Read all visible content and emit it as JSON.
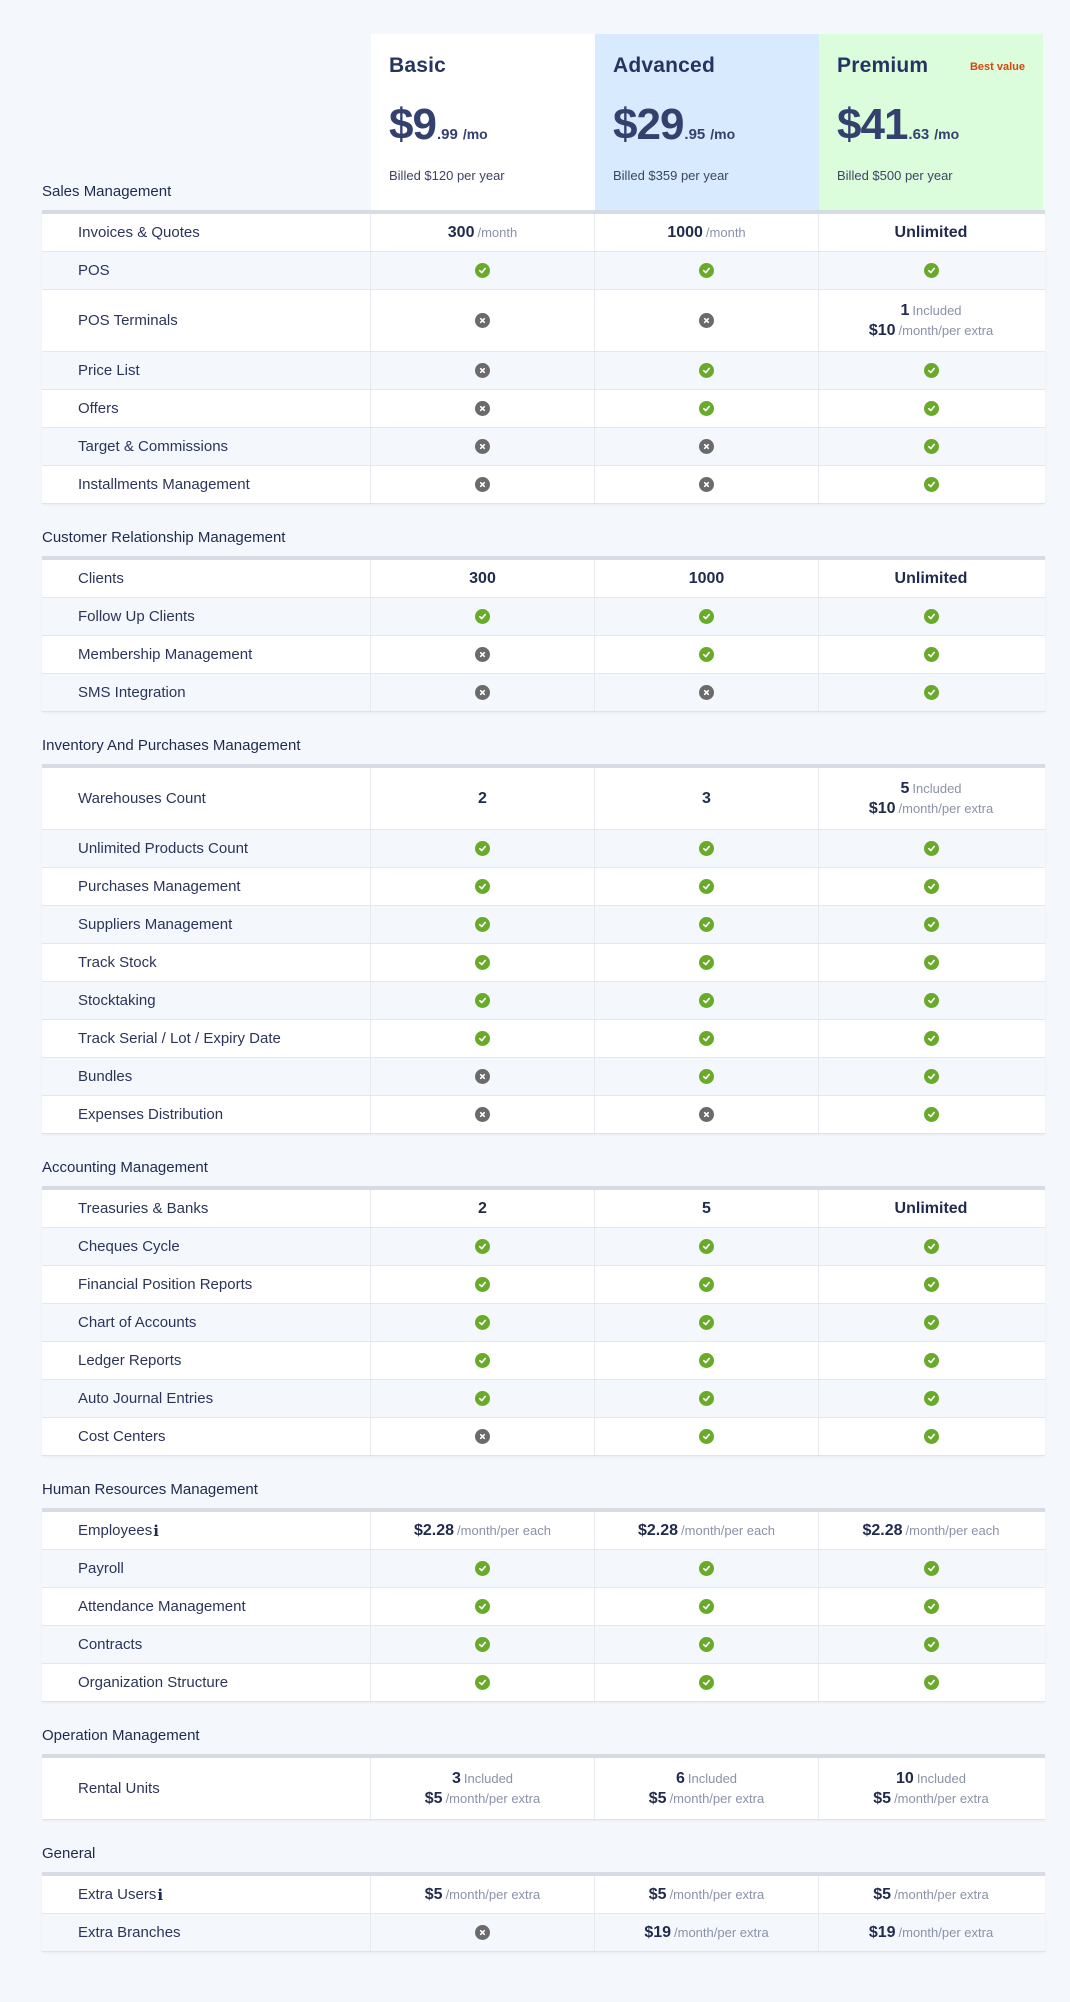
{
  "plans": [
    {
      "name": "Basic",
      "price_dollars": "$9",
      "price_cents": ".99",
      "price_period": "/mo",
      "billed": "Billed $120 per year",
      "badge": ""
    },
    {
      "name": "Advanced",
      "price_dollars": "$29",
      "price_cents": ".95",
      "price_period": "/mo",
      "billed": "Billed $359 per year",
      "badge": ""
    },
    {
      "name": "Premium",
      "price_dollars": "$41",
      "price_cents": ".63",
      "price_period": "/mo",
      "billed": "Billed $500 per year",
      "badge": "Best value"
    }
  ],
  "colors": {
    "background": "#f4f7fc",
    "basic_card": "#ffffff",
    "advanced_card": "#d8eafd",
    "premium_card": "#dcfddc",
    "best_value": "#d6450d",
    "check": "#6aaa2a",
    "cross": "#6b6b6b",
    "text_dark": "#1f2a4d"
  },
  "sections": [
    {
      "title": "Sales Management",
      "rows": [
        {
          "label": "Invoices & Quotes",
          "values": [
            {
              "main": "300",
              "sub": "/month"
            },
            {
              "main": "1000",
              "sub": "/month"
            },
            {
              "main": "Unlimited",
              "sub": ""
            }
          ]
        },
        {
          "label": "POS",
          "values": [
            "check",
            "check",
            "check"
          ]
        },
        {
          "label": "POS Terminals",
          "values": [
            "cross",
            "cross",
            {
              "main": "1",
              "sub": "Included",
              "main2": "$10",
              "sub2": "/month/per extra"
            }
          ]
        },
        {
          "label": "Price List",
          "values": [
            "cross",
            "check",
            "check"
          ]
        },
        {
          "label": "Offers",
          "values": [
            "cross",
            "check",
            "check"
          ]
        },
        {
          "label": "Target & Commissions",
          "values": [
            "cross",
            "cross",
            "check"
          ]
        },
        {
          "label": "Installments Management",
          "values": [
            "cross",
            "cross",
            "check"
          ]
        }
      ]
    },
    {
      "title": "Customer Relationship Management",
      "rows": [
        {
          "label": "Clients",
          "values": [
            {
              "main": "300",
              "sub": ""
            },
            {
              "main": "1000",
              "sub": ""
            },
            {
              "main": "Unlimited",
              "sub": ""
            }
          ]
        },
        {
          "label": "Follow Up Clients",
          "values": [
            "check",
            "check",
            "check"
          ]
        },
        {
          "label": "Membership Management",
          "values": [
            "cross",
            "check",
            "check"
          ]
        },
        {
          "label": "SMS Integration",
          "values": [
            "cross",
            "cross",
            "check"
          ]
        }
      ]
    },
    {
      "title": "Inventory And Purchases Management",
      "rows": [
        {
          "label": "Warehouses Count",
          "values": [
            {
              "main": "2",
              "sub": ""
            },
            {
              "main": "3",
              "sub": ""
            },
            {
              "main": "5",
              "sub": "Included",
              "main2": "$10",
              "sub2": "/month/per extra"
            }
          ]
        },
        {
          "label": "Unlimited Products Count",
          "values": [
            "check",
            "check",
            "check"
          ]
        },
        {
          "label": "Purchases Management",
          "values": [
            "check",
            "check",
            "check"
          ]
        },
        {
          "label": "Suppliers Management",
          "values": [
            "check",
            "check",
            "check"
          ]
        },
        {
          "label": "Track Stock",
          "values": [
            "check",
            "check",
            "check"
          ]
        },
        {
          "label": "Stocktaking",
          "values": [
            "check",
            "check",
            "check"
          ]
        },
        {
          "label": "Track Serial / Lot / Expiry Date",
          "values": [
            "check",
            "check",
            "check"
          ]
        },
        {
          "label": "Bundles",
          "values": [
            "cross",
            "check",
            "check"
          ]
        },
        {
          "label": "Expenses Distribution",
          "values": [
            "cross",
            "cross",
            "check"
          ]
        }
      ]
    },
    {
      "title": "Accounting Management",
      "rows": [
        {
          "label": "Treasuries & Banks",
          "values": [
            {
              "main": "2",
              "sub": ""
            },
            {
              "main": "5",
              "sub": ""
            },
            {
              "main": "Unlimited",
              "sub": ""
            }
          ]
        },
        {
          "label": "Cheques Cycle",
          "values": [
            "check",
            "check",
            "check"
          ]
        },
        {
          "label": "Financial Position Reports",
          "values": [
            "check",
            "check",
            "check"
          ]
        },
        {
          "label": "Chart of Accounts",
          "values": [
            "check",
            "check",
            "check"
          ]
        },
        {
          "label": "Ledger Reports",
          "values": [
            "check",
            "check",
            "check"
          ]
        },
        {
          "label": "Auto Journal Entries",
          "values": [
            "check",
            "check",
            "check"
          ]
        },
        {
          "label": "Cost Centers",
          "values": [
            "cross",
            "check",
            "check"
          ]
        }
      ]
    },
    {
      "title": "Human Resources Management",
      "rows": [
        {
          "label": "Employees",
          "info": "i",
          "values": [
            {
              "main": "$2.28",
              "sub": "/month/per each"
            },
            {
              "main": "$2.28",
              "sub": "/month/per each"
            },
            {
              "main": "$2.28",
              "sub": "/month/per each"
            }
          ]
        },
        {
          "label": "Payroll",
          "values": [
            "check",
            "check",
            "check"
          ]
        },
        {
          "label": "Attendance Management",
          "values": [
            "check",
            "check",
            "check"
          ]
        },
        {
          "label": "Contracts",
          "values": [
            "check",
            "check",
            "check"
          ]
        },
        {
          "label": "Organization Structure",
          "values": [
            "check",
            "check",
            "check"
          ]
        }
      ]
    },
    {
      "title": "Operation Management",
      "rows": [
        {
          "label": "Rental Units",
          "values": [
            {
              "main": "3",
              "sub": "Included",
              "main2": "$5",
              "sub2": "/month/per extra"
            },
            {
              "main": "6",
              "sub": "Included",
              "main2": "$5",
              "sub2": "/month/per extra"
            },
            {
              "main": "10",
              "sub": "Included",
              "main2": "$5",
              "sub2": "/month/per extra"
            }
          ]
        }
      ]
    },
    {
      "title": "General",
      "rows": [
        {
          "label": "Extra Users",
          "info": "i",
          "values": [
            {
              "main": "$5",
              "sub": "/month/per extra"
            },
            {
              "main": "$5",
              "sub": "/month/per extra"
            },
            {
              "main": "$5",
              "sub": "/month/per extra"
            }
          ]
        },
        {
          "label": "Extra Branches",
          "values": [
            "cross",
            {
              "main": "$19",
              "sub": "/month/per extra"
            },
            {
              "main": "$19",
              "sub": "/month/per extra"
            }
          ]
        }
      ]
    }
  ]
}
